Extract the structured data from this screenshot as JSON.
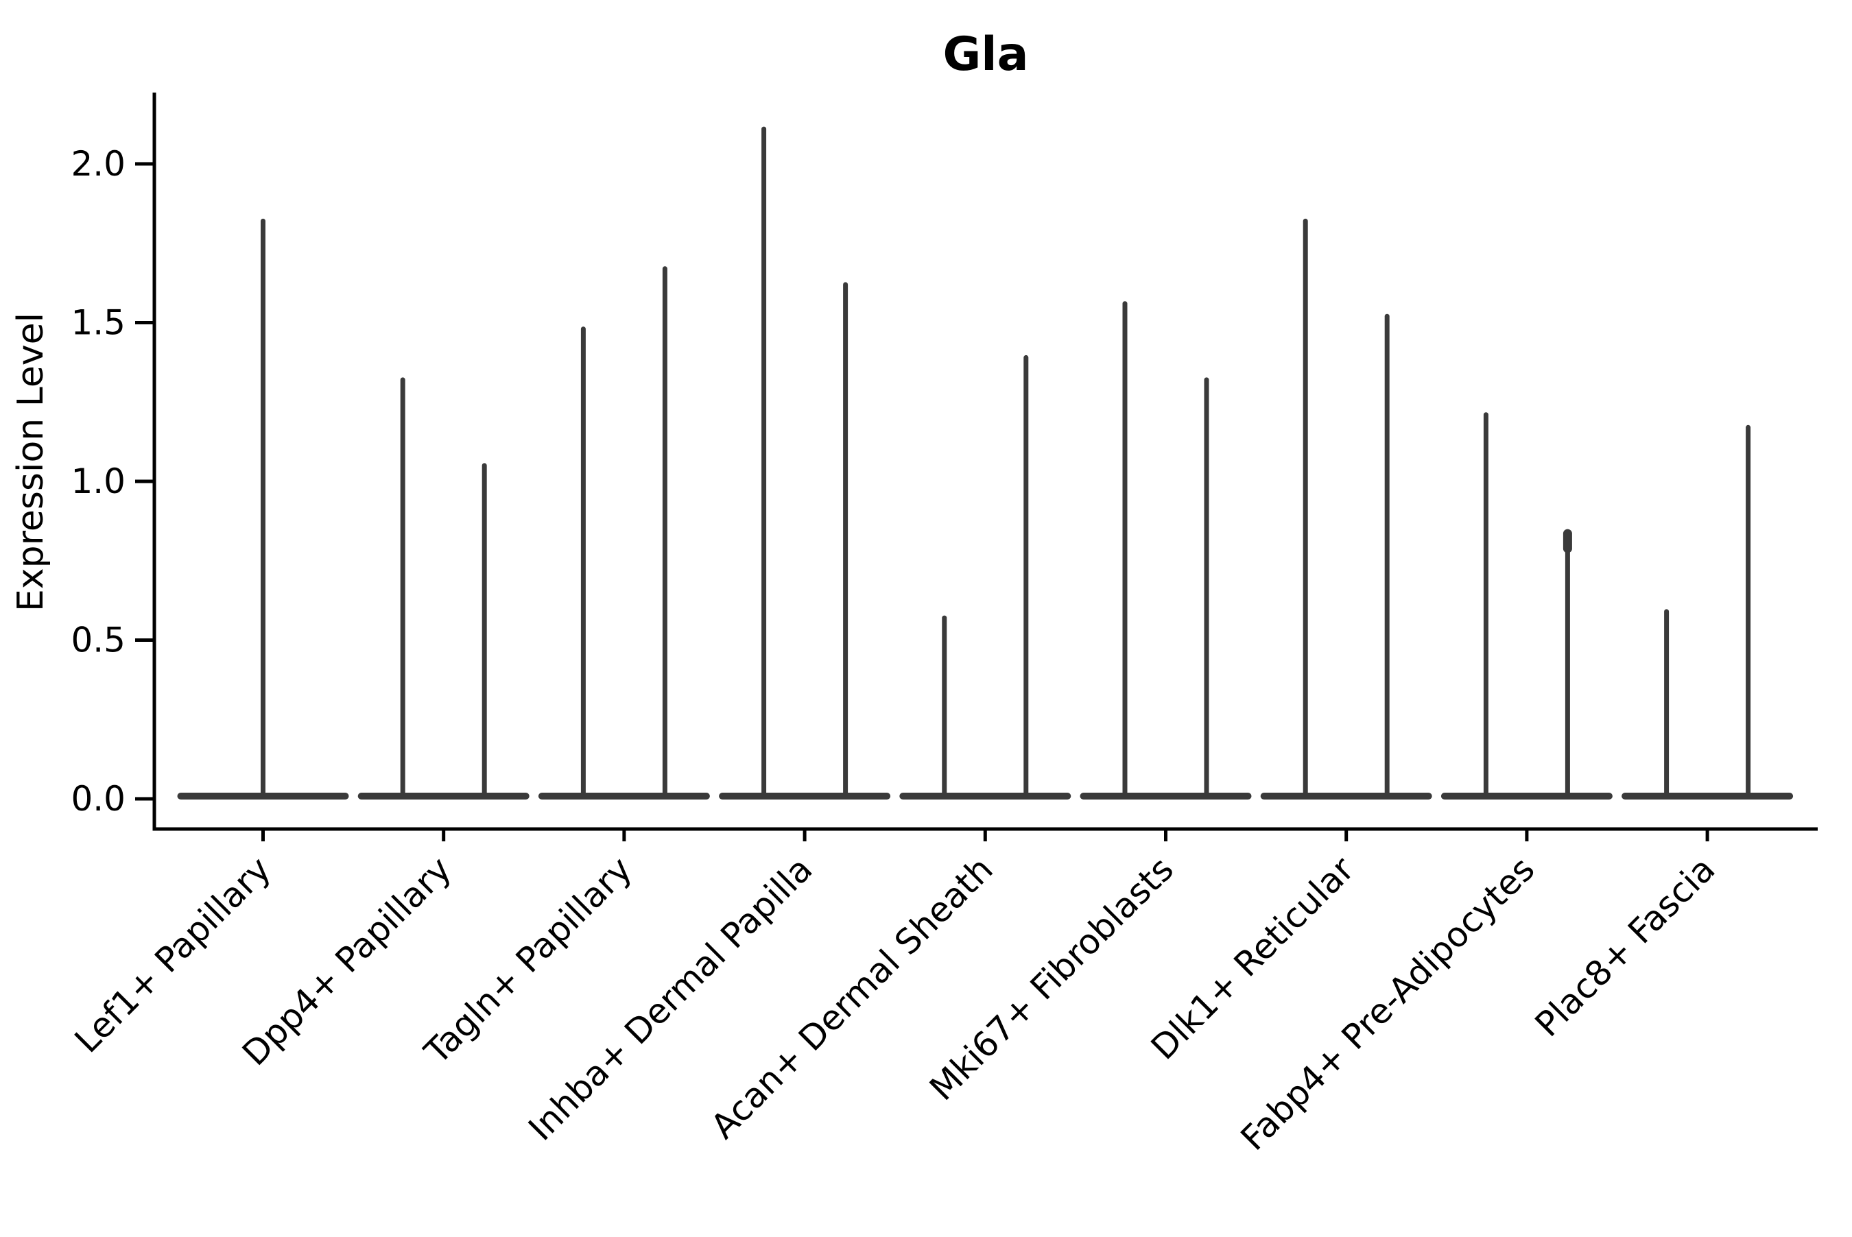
{
  "figure": {
    "title": "Gla",
    "ylabel": "Expression Level"
  },
  "chart_data": {
    "type": "violin",
    "title": "Gla",
    "xlabel": "",
    "ylabel": "Expression Level",
    "ytick_labels": [
      "0.0",
      "0.5",
      "1.0",
      "1.5",
      "2.0"
    ],
    "ytick_values": [
      0.0,
      0.5,
      1.0,
      1.5,
      2.0
    ],
    "ylim": [
      -0.1,
      2.22
    ],
    "grid": false,
    "legend": "none",
    "violin_color": "#3a3a3a",
    "axis_color": "#000000",
    "background_color": "#ffffff",
    "categories": [
      "Lef1+ Papillary",
      "Dpp4+ Papillary",
      "Tagln+ Papillary",
      "Inhba+ Dermal Papilla",
      "Acan+ Dermal Sheath",
      "Mki67+ Fibroblasts",
      "Dlk1+ Reticular",
      "Fabp4+ Pre-Adipocytes",
      "Plac8+ Fascia"
    ],
    "violins": [
      {
        "category": "Lef1+ Papillary",
        "base_at": 0.0,
        "spikes": [
          {
            "side": "center",
            "max": 1.82
          }
        ]
      },
      {
        "category": "Dpp4+ Papillary",
        "base_at": 0.0,
        "spikes": [
          {
            "side": "left",
            "max": 1.32
          },
          {
            "side": "right",
            "max": 1.05
          }
        ]
      },
      {
        "category": "Tagln+ Papillary",
        "base_at": 0.0,
        "spikes": [
          {
            "side": "left",
            "max": 1.48
          },
          {
            "side": "right",
            "max": 1.67
          }
        ]
      },
      {
        "category": "Inhba+ Dermal Papilla",
        "base_at": 0.0,
        "spikes": [
          {
            "side": "left",
            "max": 2.11
          },
          {
            "side": "right",
            "max": 1.62
          }
        ]
      },
      {
        "category": "Acan+ Dermal Sheath",
        "base_at": 0.0,
        "spikes": [
          {
            "side": "left",
            "max": 0.57
          },
          {
            "side": "right",
            "max": 1.39
          }
        ]
      },
      {
        "category": "Mki67+ Fibroblasts",
        "base_at": 0.0,
        "spikes": [
          {
            "side": "left",
            "max": 1.56
          },
          {
            "side": "right",
            "max": 1.32
          }
        ]
      },
      {
        "category": "Dlk1+ Reticular",
        "base_at": 0.0,
        "spikes": [
          {
            "side": "left",
            "max": 1.82
          },
          {
            "side": "right",
            "max": 1.52
          }
        ]
      },
      {
        "category": "Fabp4+ Pre-Adipocytes",
        "base_at": 0.0,
        "spikes": [
          {
            "side": "left",
            "max": 1.21
          },
          {
            "side": "right",
            "max": 0.84,
            "knob": true
          }
        ]
      },
      {
        "category": "Plac8+ Fascia",
        "base_at": 0.0,
        "spikes": [
          {
            "side": "left",
            "max": 0.59
          },
          {
            "side": "right",
            "max": 1.17
          }
        ]
      }
    ]
  }
}
